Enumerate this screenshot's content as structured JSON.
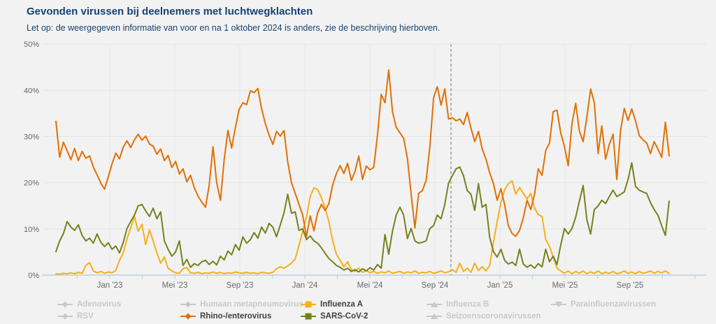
{
  "header": {
    "title": "Gevonden virussen bij deelnemers met luchtwegklachten",
    "subtitle": "Let op: de weergegeven informatie van voor en na 1 oktober 2024 is anders, zie de beschrijving hierboven."
  },
  "chart_data": {
    "type": "line",
    "title": "Gevonden virussen bij deelnemers met luchtwegklachten",
    "subtitle": "Let op: de weergegeven informatie van voor en na 1 oktober 2024 is anders, zie de beschrijving hierboven.",
    "ylabel": "",
    "xlabel": "",
    "ylim": [
      0,
      50
    ],
    "grid": true,
    "legend_position": "bottom",
    "y_axis": {
      "min": 0,
      "max": 50,
      "tick_labels": [
        "0%",
        "10%",
        "20%",
        "30%",
        "40%",
        "50%"
      ]
    },
    "x_axis": {
      "tick_labels": [
        "Jan '23",
        "Mei '23",
        "Sep '23",
        "Jan '24",
        "Mei '24",
        "Sep '24",
        "Jan '25",
        "Mei '25",
        "Sep '25"
      ],
      "minor_tick_interval_months": 2
    },
    "reference_line": {
      "label": "1 oktober 2024",
      "style": "dashed",
      "color": "#9a9a9a"
    },
    "sampling": "weekly, estimated from plot",
    "series": [
      {
        "name": "Rhino-/enterovirus",
        "color": "#e17000",
        "marker": "diamond",
        "values": [
          33.3,
          25.5,
          28.8,
          26.9,
          25.0,
          27.4,
          24.8,
          26.8,
          25.3,
          25.8,
          23.4,
          21.7,
          19.9,
          18.6,
          21.3,
          24.1,
          26.4,
          25.2,
          27.7,
          29.1,
          27.6,
          29.3,
          30.5,
          29.2,
          30.1,
          28.4,
          27.9,
          26.2,
          27.3,
          24.8,
          25.9,
          23.3,
          24.6,
          21.9,
          23.0,
          20.2,
          21.6,
          18.9,
          17.1,
          15.8,
          14.7,
          19.5,
          27.8,
          20.0,
          16.2,
          25.0,
          31.3,
          27.5,
          32.0,
          35.9,
          37.3,
          36.9,
          39.9,
          39.5,
          40.4,
          36.0,
          32.8,
          30.3,
          28.3,
          31.1,
          30.1,
          31.3,
          24.5,
          20.0,
          17.7,
          15.3,
          13.0,
          8.3,
          12.8,
          9.6,
          13.5,
          15.3,
          14.0,
          15.5,
          19.5,
          22.0,
          23.7,
          22.0,
          24.2,
          20.5,
          22.5,
          25.8,
          20.7,
          23.6,
          22.8,
          23.3,
          30.4,
          39.1,
          37.3,
          44.4,
          35.4,
          32.0,
          30.8,
          29.6,
          25.2,
          17.5,
          10.2,
          17.7,
          18.3,
          20.5,
          27.8,
          38.4,
          40.8,
          36.8,
          40.3,
          33.8,
          34.1,
          33.4,
          33.8,
          32.6,
          35.2,
          31.8,
          28.9,
          31.1,
          27.3,
          25.1,
          22.2,
          19.8,
          16.2,
          18.7,
          15.3,
          10.7,
          9.0,
          8.4,
          9.7,
          12.4,
          16.2,
          14.2,
          17.5,
          23.0,
          21.6,
          27.0,
          28.6,
          35.4,
          35.7,
          30.8,
          27.8,
          23.7,
          32.8,
          37.2,
          31.2,
          28.9,
          34.2,
          40.3,
          37.3,
          26.3,
          32.3,
          25.1,
          28.3,
          30.5,
          20.7,
          31.3,
          36.1,
          33.5,
          36.0,
          33.4,
          30.2,
          29.3,
          28.6,
          26.3,
          28.9,
          27.3,
          25.5,
          33.1,
          25.8
        ]
      },
      {
        "name": "Influenza A",
        "color": "#f5b019",
        "marker": "square",
        "values": [
          0.3,
          0.2,
          0.4,
          0.3,
          0.5,
          0.3,
          0.6,
          0.4,
          2.1,
          2.7,
          0.9,
          0.5,
          0.8,
          0.4,
          0.7,
          0.5,
          1.0,
          3.2,
          4.8,
          7.9,
          10.2,
          12.7,
          9.5,
          11.0,
          6.6,
          9.8,
          7.4,
          4.8,
          2.6,
          3.9,
          1.5,
          0.9,
          0.5,
          0.4,
          1.4,
          1.6,
          0.5,
          0.4,
          0.6,
          0.3,
          0.5,
          0.4,
          0.7,
          0.4,
          0.6,
          0.3,
          0.5,
          0.4,
          0.7,
          0.5,
          0.4,
          0.6,
          0.4,
          0.5,
          0.3,
          0.6,
          0.5,
          0.4,
          0.6,
          1.4,
          1.8,
          1.5,
          2.0,
          2.6,
          3.5,
          6.5,
          9.5,
          12.5,
          17.0,
          18.9,
          18.5,
          16.8,
          14.5,
          11.5,
          7.5,
          4.5,
          3.2,
          1.8,
          2.9,
          1.2,
          0.8,
          1.5,
          0.6,
          1.0,
          0.5,
          0.8,
          0.4,
          0.7,
          0.5,
          0.9,
          0.4,
          0.6,
          0.8,
          0.4,
          0.7,
          0.5,
          0.9,
          0.4,
          0.6,
          0.5,
          0.8,
          0.4,
          0.6,
          0.9,
          0.5,
          0.7,
          1.2,
          0.6,
          2.6,
          0.8,
          1.5,
          0.6,
          2.6,
          1.0,
          1.8,
          0.9,
          2.1,
          7.1,
          11.6,
          15.7,
          18.5,
          19.8,
          20.4,
          17.5,
          19.0,
          17.7,
          16.5,
          17.7,
          14.5,
          13.1,
          12.7,
          7.7,
          6.2,
          3.9,
          1.5,
          0.9,
          0.4,
          0.9,
          0.3,
          0.8,
          0.4,
          0.9,
          0.3,
          0.7,
          0.4,
          0.9,
          0.3,
          0.6,
          0.4,
          0.8,
          0.3,
          0.5,
          0.9,
          0.4,
          0.7,
          0.3,
          0.8,
          0.4,
          0.6,
          0.9,
          0.4,
          0.8,
          0.5,
          0.9,
          0.4
        ]
      },
      {
        "name": "SARS-CoV-2",
        "color": "#76801d",
        "marker": "square",
        "values": [
          5.1,
          7.4,
          9.0,
          11.6,
          10.4,
          9.7,
          10.9,
          8.6,
          7.4,
          8.0,
          6.9,
          8.9,
          7.1,
          6.2,
          7.0,
          5.6,
          6.3,
          4.8,
          7.1,
          10.1,
          11.6,
          13.0,
          15.0,
          15.3,
          13.9,
          12.7,
          14.5,
          12.2,
          13.7,
          7.4,
          5.6,
          4.1,
          5.0,
          7.4,
          2.1,
          3.4,
          1.7,
          2.5,
          2.1,
          2.9,
          3.2,
          2.3,
          3.0,
          2.2,
          4.1,
          3.3,
          5.2,
          4.4,
          6.6,
          5.4,
          8.3,
          6.9,
          7.7,
          9.2,
          8.0,
          10.4,
          9.1,
          11.2,
          10.4,
          8.3,
          10.9,
          13.5,
          17.5,
          13.4,
          13.7,
          9.7,
          10.0,
          7.7,
          8.5,
          7.4,
          6.9,
          5.9,
          4.7,
          3.6,
          2.9,
          2.1,
          1.7,
          1.1,
          1.5,
          0.8,
          1.2,
          0.7,
          1.4,
          0.9,
          1.6,
          1.1,
          2.3,
          1.5,
          8.8,
          4.5,
          9.5,
          13.0,
          14.7,
          13.0,
          7.9,
          10.1,
          7.4,
          6.9,
          7.1,
          7.4,
          10.1,
          10.7,
          13.0,
          12.2,
          15.3,
          19.9,
          21.5,
          23.0,
          23.4,
          21.5,
          18.3,
          17.5,
          14.0,
          19.8,
          14.7,
          15.3,
          8.2,
          5.1,
          3.9,
          5.6,
          3.2,
          2.4,
          2.8,
          2.1,
          5.6,
          2.4,
          1.7,
          2.2,
          1.5,
          2.5,
          1.8,
          5.6,
          2.9,
          4.1,
          2.3,
          6.5,
          10.1,
          8.9,
          10.1,
          12.5,
          16.0,
          19.4,
          12.0,
          8.9,
          14.2,
          15.0,
          16.2,
          15.5,
          17.0,
          18.4,
          17.0,
          17.5,
          18.0,
          20.7,
          24.3,
          19.2,
          18.4,
          18.0,
          17.7,
          15.7,
          14.2,
          13.0,
          10.7,
          8.6,
          16.0
        ]
      }
    ],
    "legend": {
      "disabled_color": "#c9c9c9",
      "active_text_color": "#3f3f3f",
      "columns": [
        [
          {
            "label": "Adenovirus",
            "marker": "diamond",
            "active": false
          },
          {
            "label": "RSV",
            "marker": "diamond",
            "active": false
          }
        ],
        [
          {
            "label": "Humaan metapneumovirus",
            "marker": "diamond",
            "active": false
          },
          {
            "label": "Rhino-/enterovirus",
            "marker": "diamond",
            "active": true,
            "color": "#e17000"
          }
        ],
        [
          {
            "label": "Influenza A",
            "marker": "square",
            "active": true,
            "color": "#f5b019"
          },
          {
            "label": "SARS-CoV-2",
            "marker": "square",
            "active": true,
            "color": "#76801d"
          }
        ],
        [
          {
            "label": "Influenza B",
            "marker": "triangle-up",
            "active": false
          },
          {
            "label": "Seizoenscoronavirussen",
            "marker": "triangle-up",
            "active": false
          }
        ],
        [
          {
            "label": "Parainfluenzavirussen",
            "marker": "triangle-down",
            "active": false
          }
        ]
      ]
    },
    "colors": {
      "title": "#154273",
      "grid": "#e3e3e3",
      "axis": "#b9cfe0",
      "tick_label": "#6b6b6b"
    }
  }
}
